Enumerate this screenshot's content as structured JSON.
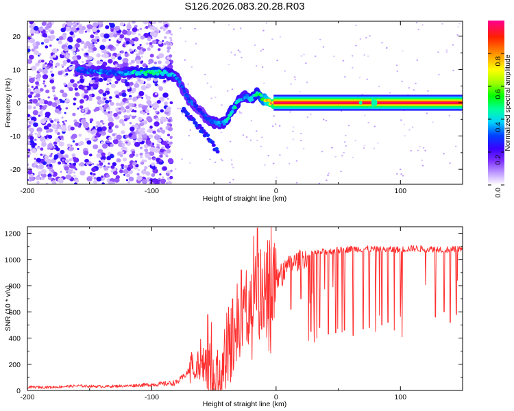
{
  "figure_title": "S126.2026.083.20.28.R03",
  "chart_data": [
    {
      "type": "heatmap",
      "title": "S126.2026.083.20.28.R03",
      "xlabel": "Height of straight line (km)",
      "ylabel": "Frequency (Hz)",
      "xlim": [
        -200,
        150
      ],
      "ylim": [
        -24.5,
        24.5
      ],
      "xticks": [
        -200,
        -100,
        0,
        100
      ],
      "yticks": [
        20,
        10,
        0,
        -10,
        -20
      ],
      "colorbar": {
        "label": "Normalized spectral amplitude",
        "range": [
          0,
          1
        ],
        "ticks": [
          0.0,
          0.2,
          0.4,
          0.6,
          0.8
        ]
      },
      "ridge": {
        "description": "Dominant frequency track (normalized amplitude ~0.3-1.0)",
        "x": [
          -160,
          -150,
          -140,
          -130,
          -120,
          -110,
          -100,
          -95,
          -90,
          -85,
          -80,
          -75,
          -70,
          -65,
          -60,
          -55,
          -50,
          -45,
          -40,
          -35,
          -30,
          -25,
          -20,
          -15,
          -10,
          -5,
          0,
          20,
          40,
          60,
          80,
          100,
          120,
          150
        ],
        "y": [
          10,
          9.5,
          9.5,
          9,
          9,
          9,
          9,
          9,
          9,
          8.5,
          7.5,
          4,
          1,
          -1,
          -3,
          -5,
          -6,
          -6.5,
          -5.5,
          -2,
          0.5,
          2,
          1,
          3,
          1,
          0,
          0,
          0,
          0,
          0,
          0,
          0,
          0,
          0
        ]
      },
      "ridge_amplitude": [
        0.3,
        0.3,
        0.35,
        0.3,
        0.35,
        0.45,
        0.5,
        0.5,
        0.45,
        0.4,
        0.35,
        0.3,
        0.3,
        0.3,
        0.25,
        0.3,
        0.35,
        0.35,
        0.4,
        0.45,
        0.4,
        0.35,
        0.4,
        0.45,
        0.6,
        0.8,
        0.95,
        1,
        1,
        1,
        1,
        1,
        1,
        1
      ],
      "noise_region": "x from -200 to -85 km: scattered low-amplitude (0.05-0.25) speckle across all frequencies"
    },
    {
      "type": "line",
      "title": "",
      "xlabel": "Height of straight line (km)",
      "ylabel": "SNR (10 * v/v)",
      "xlim": [
        -200,
        150
      ],
      "ylim": [
        0,
        1250
      ],
      "xticks": [
        -200,
        -100,
        0,
        100
      ],
      "yticks": [
        0,
        200,
        400,
        600,
        800,
        1000,
        1200
      ],
      "line_color": "#ff3030",
      "series": [
        {
          "name": "SNR",
          "x": [
            -200,
            -180,
            -160,
            -140,
            -120,
            -100,
            -90,
            -80,
            -75,
            -70,
            -65,
            -60,
            -55,
            -50,
            -45,
            -40,
            -35,
            -30,
            -25,
            -20,
            -15,
            -10,
            -5,
            0,
            5,
            10,
            15,
            20,
            25,
            30,
            40,
            50,
            60,
            70,
            80,
            90,
            100,
            110,
            120,
            130,
            140,
            150
          ],
          "y": [
            25,
            25,
            35,
            30,
            35,
            45,
            50,
            60,
            100,
            150,
            200,
            250,
            150,
            60,
            120,
            300,
            400,
            500,
            600,
            650,
            700,
            750,
            800,
            850,
            900,
            950,
            980,
            1000,
            1020,
            1050,
            1060,
            1070,
            1080,
            1080,
            1080,
            1075,
            1075,
            1085,
            1080,
            1080,
            1075,
            1080
          ]
        }
      ],
      "dropouts": {
        "description": "Sharp downward spikes from the ~1000-1100 plateau",
        "x": [
          5,
          12,
          20,
          28,
          35,
          42,
          48,
          55,
          62,
          70,
          75,
          80,
          85,
          90,
          95,
          100,
          128,
          135,
          140,
          145
        ],
        "y": [
          800,
          620,
          700,
          450,
          480,
          430,
          440,
          460,
          420,
          470,
          480,
          450,
          500,
          520,
          460,
          720,
          560,
          600,
          520,
          580
        ]
      },
      "peaks": {
        "description": "Noisy spikes in transition region",
        "x": [
          -55,
          -52,
          -35,
          -28,
          -18,
          -15
        ],
        "y": [
          580,
          520,
          700,
          920,
          1180,
          1240
        ]
      }
    }
  ]
}
